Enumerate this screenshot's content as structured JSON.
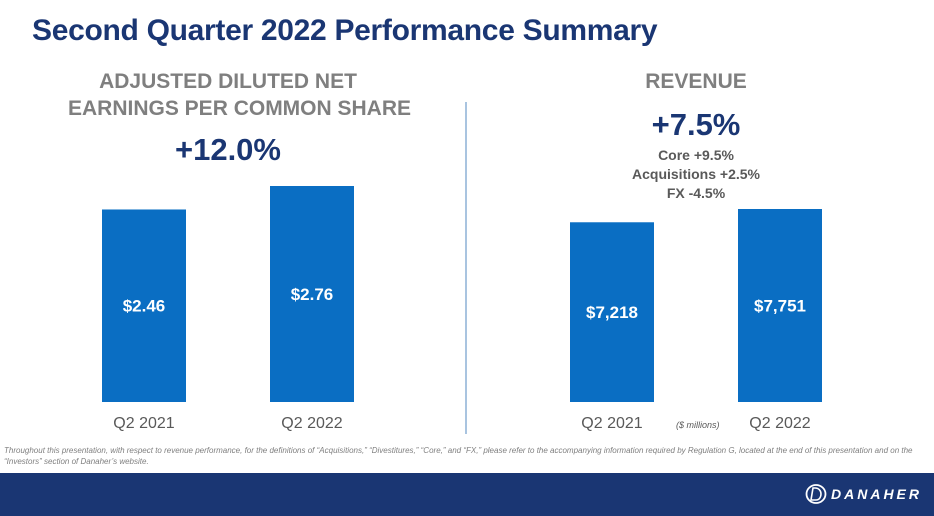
{
  "header": {
    "title": "Second Quarter 2022 Performance Summary"
  },
  "eps": {
    "title_line1": "ADJUSTED DILUTED NET",
    "title_line2": "EARNINGS PER COMMON SHARE",
    "growth": "+12.0%"
  },
  "revenue": {
    "title": "REVENUE",
    "growth": "+7.5%",
    "breakdown": [
      "Core +9.5%",
      "Acquisitions +2.5%",
      "FX -4.5%"
    ],
    "units": "($ millions)"
  },
  "chart_data": [
    {
      "type": "bar",
      "title": "ADJUSTED DILUTED NET EARNINGS PER COMMON SHARE",
      "categories": [
        "Q2 2021",
        "Q2 2022"
      ],
      "values": [
        2.46,
        2.76
      ],
      "labels": [
        "$2.46",
        "$2.76"
      ],
      "color": "#0a6ec3"
    },
    {
      "type": "bar",
      "title": "REVENUE",
      "categories": [
        "Q2 2021",
        "Q2 2022"
      ],
      "values": [
        7218,
        7751
      ],
      "labels": [
        "$7,218",
        "$7,751"
      ],
      "color": "#0a6ec3"
    }
  ],
  "footnote": "Throughout this presentation, with respect to revenue performance, for the definitions of “Acquisitions,” “Divestitures,” “Core,” and “FX,” please refer to the accompanying information required by Regulation G, located at the end of this presentation and on the “Investors” section of Danaher’s website.",
  "footer": {
    "logo_text": "DANAHER",
    "logo_icon": "danaher-logo-icon"
  },
  "colors": {
    "brand": "#1a3673",
    "bar": "#0a6ec3",
    "footer": "#1a3673"
  }
}
